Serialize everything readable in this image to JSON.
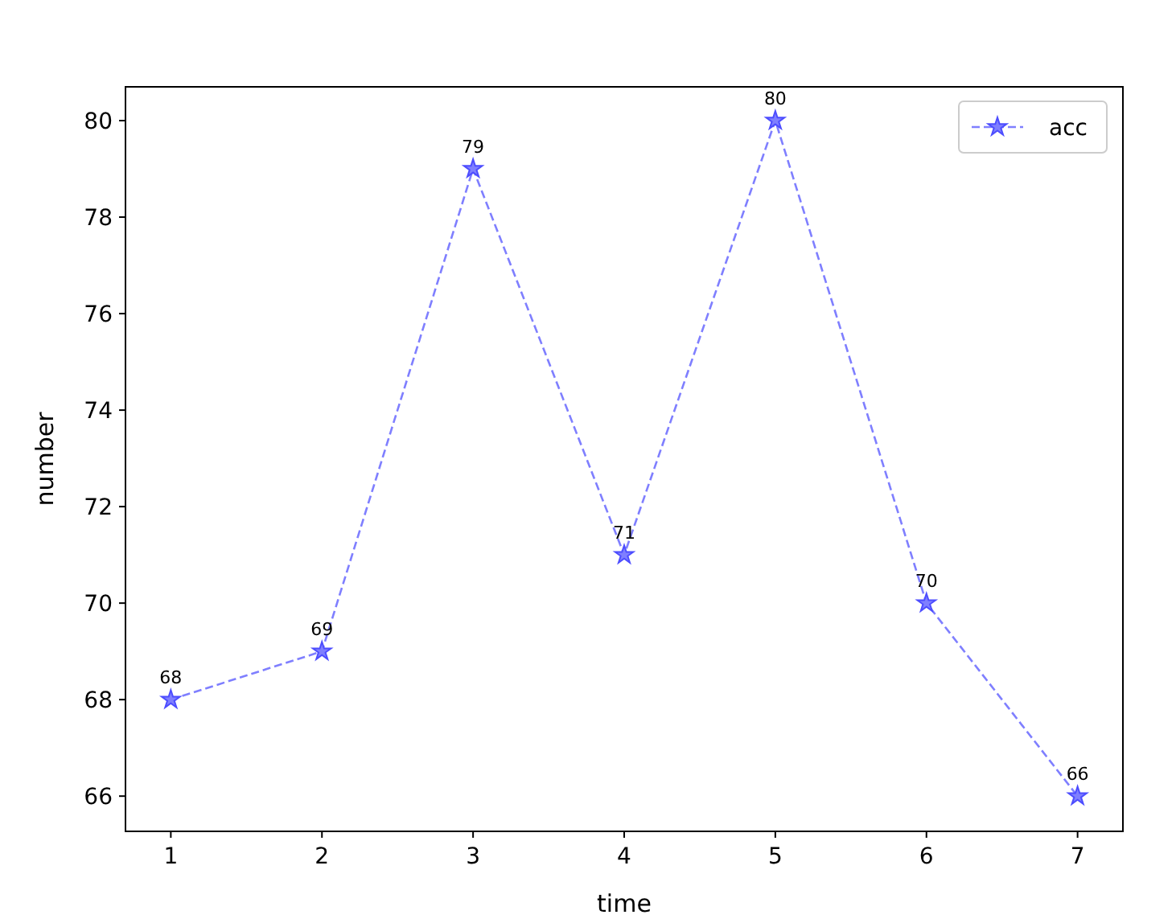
{
  "chart_data": {
    "type": "line",
    "xlabel": "time",
    "ylabel": "number",
    "x": [
      1,
      2,
      3,
      4,
      5,
      6,
      7
    ],
    "series": [
      {
        "name": "acc",
        "color": "#7f7fff",
        "values": [
          68,
          69,
          79,
          71,
          80,
          70,
          66
        ]
      }
    ],
    "xlim": [
      0.7,
      7.3
    ],
    "xticks": [
      1,
      2,
      3,
      4,
      5,
      6,
      7
    ],
    "ylim": [
      65.27,
      80.7
    ],
    "yticks": [
      66,
      68,
      70,
      72,
      74,
      76,
      78,
      80
    ],
    "grid": false,
    "legend": "top right",
    "marker": "star",
    "line_style": "dashed",
    "data_labels": true
  }
}
